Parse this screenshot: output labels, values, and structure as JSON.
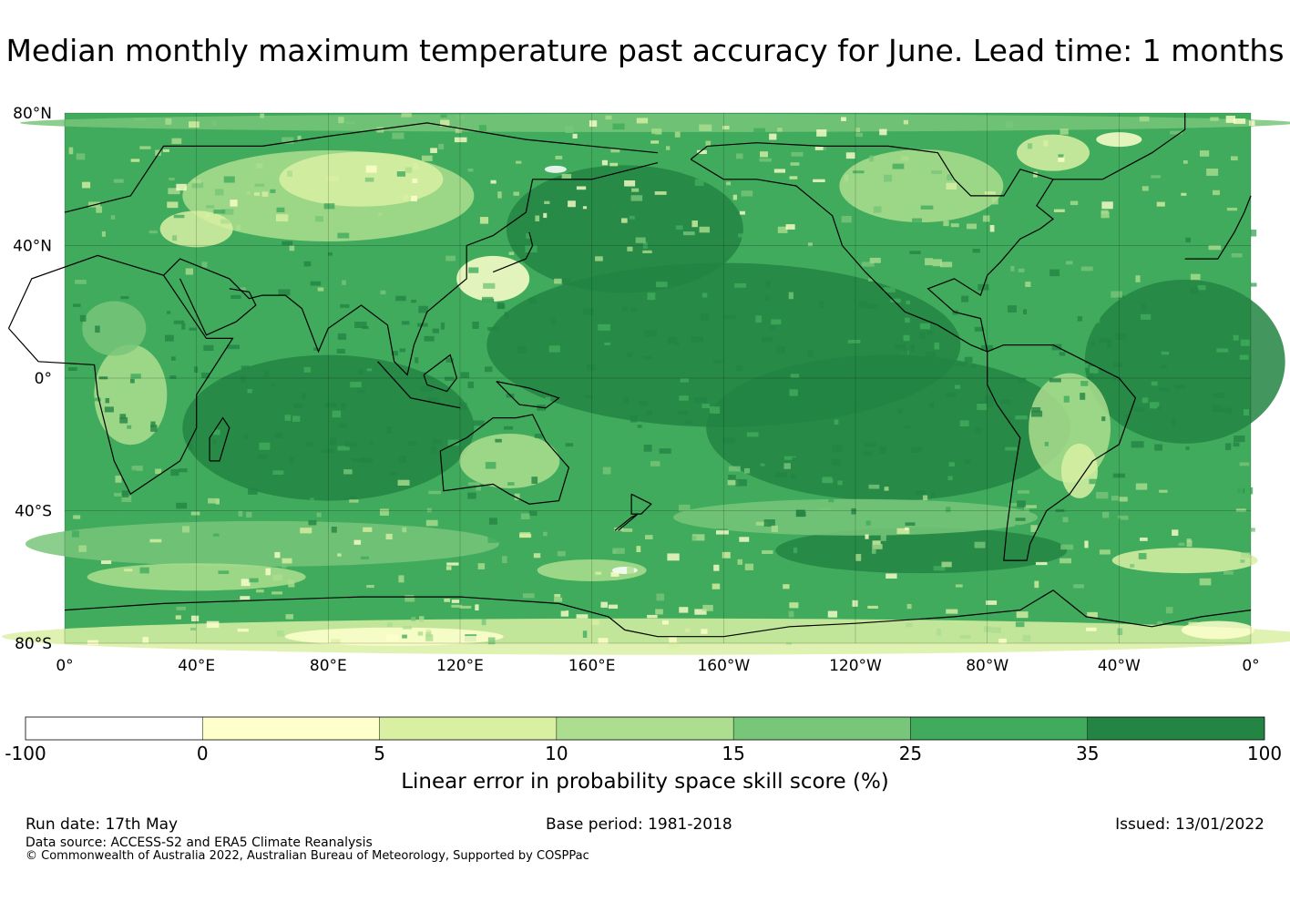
{
  "title": "Median monthly maximum temperature past accuracy for June. Lead time: 1 months",
  "map": {
    "lat_labels": [
      "80°N",
      "40°N",
      "0°",
      "40°S",
      "80°S"
    ],
    "lon_labels": [
      "0°",
      "40°E",
      "80°E",
      "120°E",
      "160°E",
      "160°W",
      "120°W",
      "80°W",
      "40°W",
      "0°"
    ],
    "projection": "equirectangular, centered on 180°",
    "gridlines": true,
    "coastlines": true
  },
  "colorbar": {
    "bounds": [
      "-100",
      "0",
      "5",
      "10",
      "15",
      "25",
      "35",
      "100"
    ],
    "colors": [
      "#ffffff",
      "#ffffcc",
      "#d9f0a3",
      "#addd8e",
      "#78c679",
      "#41ab5d",
      "#238443"
    ],
    "title": "Linear error in probability space skill score (%)"
  },
  "footer": {
    "run_date": "Run date: 17th May",
    "base_period": "Base period: 1981-2018",
    "issued": "Issued: 13/01/2022",
    "data_source": "Data source: ACCESS-S2 and ERA5 Climate Reanalysis",
    "copyright": "© Commonwealth of Australia 2022, Australian Bureau of Meteorology, Supported by COSPPac"
  }
}
